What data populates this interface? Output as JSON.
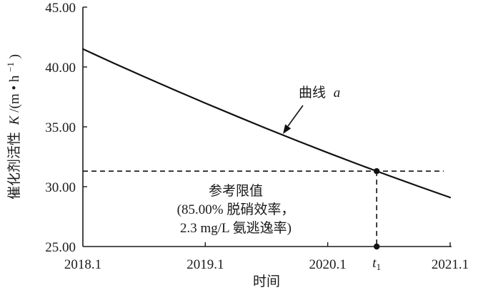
{
  "chart_data": {
    "type": "line",
    "title": "",
    "xlabel": "时间",
    "ylabel": {
      "name": "催化剂活性",
      "var": "K",
      "unit_open": "/(m • h",
      "unit_exp": "−1",
      "unit_close": ")"
    },
    "xlim": [
      2018.1,
      2021.1
    ],
    "ylim": [
      25,
      45
    ],
    "x_ticks": [
      "2018.1",
      "2019.1",
      "2020.1",
      "2021.1"
    ],
    "y_ticks": [
      "25.00",
      "30.00",
      "35.00",
      "40.00",
      "45.00"
    ],
    "grid": false,
    "series": [
      {
        "x": [
          2018.1,
          2018.35,
          2018.6,
          2018.85,
          2019.1,
          2019.35,
          2019.6,
          2019.85,
          2020.1,
          2020.35,
          2020.6,
          2020.85,
          2021.1
        ],
        "y": [
          41.5,
          40.33,
          39.19,
          38.07,
          36.98,
          35.91,
          34.86,
          33.84,
          32.84,
          31.87,
          30.92,
          30.0,
          29.1
        ]
      }
    ],
    "annotation": {
      "label": "曲线",
      "var": "a"
    },
    "reference_line": {
      "y": 31.3,
      "style": "dashed",
      "label_lines": [
        "参考限值",
        "(85.00% 脱硝效率，",
        "2.3 mg/L 氨逃逸率)"
      ]
    },
    "marker": {
      "x": 2020.5,
      "y": 31.3,
      "label": "t",
      "label_sub": "1"
    },
    "colors": {
      "ink": "#111111",
      "background": "#ffffff"
    }
  }
}
